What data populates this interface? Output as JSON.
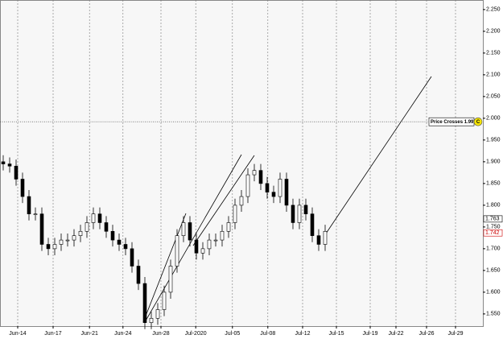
{
  "chart_data": {
    "type": "candlestick",
    "x": [
      0,
      1,
      2,
      3,
      4,
      5,
      6,
      7,
      8,
      9,
      10,
      11,
      12,
      13,
      14,
      15,
      16,
      17,
      18,
      19,
      20,
      21,
      22,
      23,
      24,
      25,
      26,
      27,
      28,
      29,
      30,
      31,
      32,
      33,
      34,
      35,
      36,
      37,
      38,
      39,
      40,
      41,
      42,
      43,
      44,
      45,
      46,
      47,
      48,
      49,
      50
    ],
    "open": [
      1.9,
      1.895,
      1.89,
      1.86,
      1.82,
      1.78,
      1.78,
      1.71,
      1.7,
      1.71,
      1.72,
      1.72,
      1.73,
      1.74,
      1.76,
      1.78,
      1.76,
      1.74,
      1.72,
      1.71,
      1.7,
      1.66,
      1.62,
      1.53,
      1.54,
      1.56,
      1.6,
      1.66,
      1.73,
      1.76,
      1.72,
      1.69,
      1.7,
      1.72,
      1.72,
      1.74,
      1.76,
      1.8,
      1.82,
      1.87,
      1.88,
      1.85,
      1.83,
      1.82,
      1.86,
      1.8,
      1.76,
      1.8,
      1.78,
      1.73,
      1.71
    ],
    "high": [
      1.915,
      1.91,
      1.905,
      1.875,
      1.835,
      1.795,
      1.795,
      1.725,
      1.725,
      1.735,
      1.735,
      1.745,
      1.755,
      1.775,
      1.795,
      1.795,
      1.775,
      1.755,
      1.735,
      1.725,
      1.715,
      1.675,
      1.635,
      1.555,
      1.575,
      1.615,
      1.675,
      1.745,
      1.775,
      1.775,
      1.735,
      1.715,
      1.735,
      1.735,
      1.755,
      1.775,
      1.815,
      1.835,
      1.885,
      1.895,
      1.895,
      1.865,
      1.845,
      1.875,
      1.875,
      1.815,
      1.815,
      1.815,
      1.795,
      1.745,
      1.755
    ],
    "low": [
      1.88,
      1.875,
      1.845,
      1.805,
      1.765,
      1.765,
      1.695,
      1.685,
      1.685,
      1.695,
      1.705,
      1.705,
      1.715,
      1.725,
      1.745,
      1.745,
      1.725,
      1.705,
      1.695,
      1.685,
      1.645,
      1.605,
      1.515,
      1.515,
      1.525,
      1.545,
      1.585,
      1.645,
      1.715,
      1.705,
      1.675,
      1.675,
      1.685,
      1.705,
      1.705,
      1.725,
      1.745,
      1.785,
      1.805,
      1.855,
      1.835,
      1.815,
      1.805,
      1.805,
      1.785,
      1.745,
      1.745,
      1.765,
      1.715,
      1.695,
      1.695
    ],
    "close": [
      1.895,
      1.89,
      1.86,
      1.82,
      1.78,
      1.78,
      1.71,
      1.7,
      1.71,
      1.72,
      1.72,
      1.73,
      1.74,
      1.76,
      1.78,
      1.76,
      1.74,
      1.72,
      1.71,
      1.7,
      1.66,
      1.62,
      1.53,
      1.54,
      1.56,
      1.6,
      1.66,
      1.73,
      1.76,
      1.72,
      1.69,
      1.7,
      1.72,
      1.72,
      1.74,
      1.76,
      1.8,
      1.82,
      1.87,
      1.88,
      1.85,
      1.83,
      1.82,
      1.86,
      1.8,
      1.76,
      1.8,
      1.78,
      1.73,
      1.71,
      1.74
    ],
    "up_color": "#ffffff",
    "down_color": "#000000",
    "xlim": [
      -0.5,
      74.5
    ],
    "xticks": [
      {
        "value": 2.25,
        "label": "Jun-14"
      },
      {
        "value": 7.75,
        "label": "Jun-17"
      },
      {
        "value": 13.4,
        "label": "Jun-21"
      },
      {
        "value": 18.6,
        "label": "Jun-24"
      },
      {
        "value": 24.5,
        "label": "Jun-28"
      },
      {
        "value": 29.9,
        "label": "Jul-2020"
      },
      {
        "value": 35.6,
        "label": "Jul-05"
      },
      {
        "value": 41.1,
        "label": "Jul-08"
      },
      {
        "value": 46.5,
        "label": "Jul-12"
      },
      {
        "value": 51.75,
        "label": "Jul-15"
      },
      {
        "value": 57,
        "label": "Jul-19"
      },
      {
        "value": 61,
        "label": "Jul-22"
      },
      {
        "value": 65.75,
        "label": "Jul-26"
      },
      {
        "value": 70.25,
        "label": "Jul-29"
      }
    ],
    "ylim": [
      1.522,
      2.272
    ],
    "yticks": [
      {
        "value": 1.55,
        "label": "1.550"
      },
      {
        "value": 1.6,
        "label": "1.600"
      },
      {
        "value": 1.65,
        "label": "1.650"
      },
      {
        "value": 1.7,
        "label": "1.700"
      },
      {
        "value": 1.75,
        "label": "1.750"
      },
      {
        "value": 1.8,
        "label": "1.800"
      },
      {
        "value": 1.85,
        "label": "1.850"
      },
      {
        "value": 1.9,
        "label": "1.900"
      },
      {
        "value": 1.95,
        "label": "1.950"
      },
      {
        "value": 2.0,
        "label": "2.000"
      },
      {
        "value": 2.05,
        "label": "2.050"
      },
      {
        "value": 2.1,
        "label": "2.100"
      },
      {
        "value": 2.15,
        "label": "2.150"
      },
      {
        "value": 2.2,
        "label": "2.200"
      },
      {
        "value": 2.25,
        "label": "2.250"
      }
    ],
    "grid": true,
    "alert": {
      "value": 1.992,
      "label": "Price  Crosses 1.992",
      "badge": "C"
    },
    "price_tags": [
      {
        "value": 1.763,
        "color": "#000000"
      },
      {
        "value": 1.742,
        "color": "#cc0000"
      }
    ]
  }
}
